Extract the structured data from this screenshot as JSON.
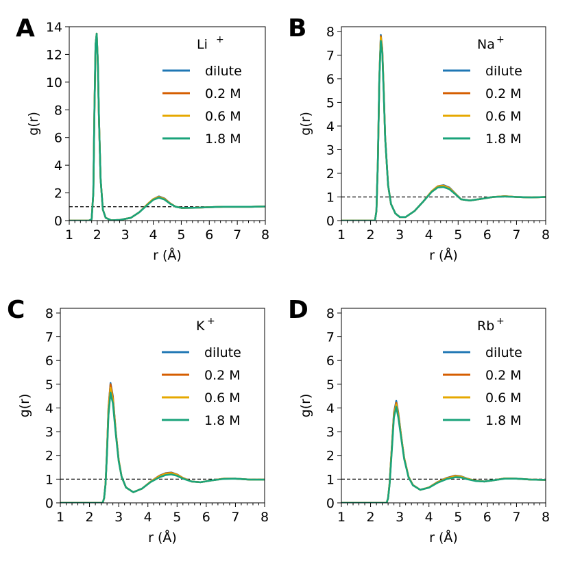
{
  "colors": {
    "dilute": "#1f77b4",
    "0.2 M": "#d55e00",
    "0.6 M": "#e6a800",
    "1.8 M": "#1aa37a",
    "reference": "#000000"
  },
  "chart_data": [
    {
      "panel": "A",
      "type": "line",
      "legend_title": "Li",
      "legend_title_sup": "+",
      "legend_placement": "top-right",
      "xlabel": "r (Å)",
      "ylabel": "g(r)",
      "xlim": [
        1,
        8
      ],
      "ylim": [
        0,
        14
      ],
      "xticks": [
        1,
        2,
        3,
        4,
        5,
        6,
        7,
        8
      ],
      "yticks": [
        0,
        2,
        4,
        6,
        8,
        10,
        12,
        14
      ],
      "reference_line": 1.0,
      "series": [
        {
          "name": "dilute",
          "x": [
            1.0,
            1.7,
            1.8,
            1.86,
            1.9,
            1.94,
            1.98,
            2.02,
            2.06,
            2.12,
            2.2,
            2.3,
            2.5,
            2.8,
            3.2,
            3.5,
            3.8,
            4.0,
            4.2,
            4.4,
            4.6,
            4.8,
            5.0,
            5.5,
            6.0,
            6.5,
            7.0,
            7.5,
            8.0
          ],
          "y": [
            0,
            0,
            0.1,
            2.0,
            8.0,
            12.7,
            13.5,
            11.5,
            7.5,
            3.0,
            0.8,
            0.2,
            0.02,
            0.05,
            0.2,
            0.6,
            1.2,
            1.55,
            1.75,
            1.6,
            1.25,
            1.0,
            0.92,
            0.93,
            0.97,
            1.0,
            1.0,
            1.0,
            1.02
          ]
        },
        {
          "name": "0.2 M",
          "x": [
            1.0,
            1.7,
            1.8,
            1.86,
            1.9,
            1.94,
            1.98,
            2.02,
            2.06,
            2.12,
            2.2,
            2.3,
            2.5,
            2.8,
            3.2,
            3.5,
            3.8,
            4.0,
            4.2,
            4.4,
            4.6,
            4.8,
            5.0,
            5.5,
            6.0,
            6.5,
            7.0,
            7.5,
            8.0
          ],
          "y": [
            0,
            0,
            0.1,
            2.0,
            8.0,
            12.7,
            13.5,
            11.5,
            7.5,
            3.0,
            0.8,
            0.2,
            0.02,
            0.05,
            0.2,
            0.6,
            1.2,
            1.55,
            1.72,
            1.58,
            1.25,
            1.0,
            0.92,
            0.93,
            0.97,
            1.0,
            1.0,
            1.0,
            1.02
          ]
        },
        {
          "name": "0.6 M",
          "x": [
            1.0,
            1.7,
            1.8,
            1.86,
            1.9,
            1.94,
            1.98,
            2.02,
            2.06,
            2.12,
            2.2,
            2.3,
            2.5,
            2.8,
            3.2,
            3.5,
            3.8,
            4.0,
            4.2,
            4.4,
            4.6,
            4.8,
            5.0,
            5.5,
            6.0,
            6.5,
            7.0,
            7.5,
            8.0
          ],
          "y": [
            0,
            0,
            0.1,
            2.0,
            8.0,
            12.7,
            13.5,
            11.5,
            7.5,
            3.0,
            0.8,
            0.2,
            0.02,
            0.05,
            0.2,
            0.6,
            1.2,
            1.55,
            1.7,
            1.56,
            1.24,
            1.0,
            0.92,
            0.93,
            0.97,
            1.0,
            1.0,
            1.0,
            1.02
          ]
        },
        {
          "name": "1.8 M",
          "x": [
            1.0,
            1.7,
            1.8,
            1.86,
            1.9,
            1.94,
            1.98,
            2.02,
            2.06,
            2.12,
            2.2,
            2.3,
            2.5,
            2.8,
            3.2,
            3.5,
            3.8,
            4.0,
            4.2,
            4.4,
            4.6,
            4.8,
            5.0,
            5.5,
            6.0,
            6.5,
            7.0,
            7.5,
            8.0
          ],
          "y": [
            0,
            0,
            0.1,
            2.0,
            8.0,
            12.7,
            13.5,
            11.5,
            7.5,
            3.0,
            0.8,
            0.2,
            0.02,
            0.05,
            0.2,
            0.6,
            1.15,
            1.5,
            1.65,
            1.52,
            1.22,
            1.0,
            0.92,
            0.93,
            0.97,
            1.0,
            1.0,
            1.0,
            1.02
          ]
        }
      ]
    },
    {
      "panel": "B",
      "type": "line",
      "legend_title": "Na",
      "legend_title_sup": "+",
      "legend_placement": "top-right",
      "xlabel": "r (Å)",
      "ylabel": "g(r)",
      "xlim": [
        1,
        8
      ],
      "ylim": [
        0,
        8.2
      ],
      "xticks": [
        1,
        2,
        3,
        4,
        5,
        6,
        7,
        8
      ],
      "yticks": [
        0,
        1,
        2,
        3,
        4,
        5,
        6,
        7,
        8
      ],
      "reference_line": 1.0,
      "series": [
        {
          "name": "dilute",
          "x": [
            1.0,
            2.15,
            2.2,
            2.25,
            2.3,
            2.35,
            2.4,
            2.45,
            2.5,
            2.6,
            2.7,
            2.85,
            3.0,
            3.2,
            3.5,
            3.8,
            4.1,
            4.3,
            4.5,
            4.7,
            4.9,
            5.1,
            5.4,
            5.8,
            6.2,
            6.6,
            7.0,
            7.5,
            8.0
          ],
          "y": [
            0,
            0,
            0.4,
            2.5,
            6.0,
            7.85,
            7.3,
            5.5,
            3.5,
            1.5,
            0.7,
            0.3,
            0.15,
            0.15,
            0.4,
            0.8,
            1.25,
            1.45,
            1.5,
            1.4,
            1.15,
            0.9,
            0.85,
            0.92,
            1.0,
            1.03,
            1.0,
            0.98,
            1.0
          ]
        },
        {
          "name": "0.2 M",
          "x": [
            1.0,
            2.15,
            2.2,
            2.25,
            2.3,
            2.35,
            2.4,
            2.45,
            2.5,
            2.6,
            2.7,
            2.85,
            3.0,
            3.2,
            3.5,
            3.8,
            4.1,
            4.3,
            4.5,
            4.7,
            4.9,
            5.1,
            5.4,
            5.8,
            6.2,
            6.6,
            7.0,
            7.5,
            8.0
          ],
          "y": [
            0,
            0,
            0.4,
            2.5,
            6.0,
            7.8,
            7.25,
            5.5,
            3.5,
            1.5,
            0.7,
            0.3,
            0.15,
            0.15,
            0.4,
            0.8,
            1.25,
            1.45,
            1.48,
            1.38,
            1.14,
            0.9,
            0.85,
            0.92,
            1.0,
            1.03,
            1.0,
            0.98,
            1.0
          ]
        },
        {
          "name": "0.6 M",
          "x": [
            1.0,
            2.15,
            2.2,
            2.25,
            2.3,
            2.35,
            2.4,
            2.45,
            2.5,
            2.6,
            2.7,
            2.85,
            3.0,
            3.2,
            3.5,
            3.8,
            4.1,
            4.3,
            4.5,
            4.7,
            4.9,
            5.1,
            5.4,
            5.8,
            6.2,
            6.6,
            7.0,
            7.5,
            8.0
          ],
          "y": [
            0,
            0,
            0.4,
            2.5,
            6.0,
            7.75,
            7.2,
            5.5,
            3.5,
            1.5,
            0.7,
            0.3,
            0.15,
            0.15,
            0.4,
            0.8,
            1.25,
            1.44,
            1.47,
            1.37,
            1.14,
            0.9,
            0.85,
            0.92,
            1.0,
            1.03,
            1.0,
            0.98,
            1.0
          ]
        },
        {
          "name": "1.8 M",
          "x": [
            1.0,
            2.15,
            2.2,
            2.25,
            2.3,
            2.35,
            2.4,
            2.45,
            2.5,
            2.6,
            2.7,
            2.85,
            3.0,
            3.2,
            3.5,
            3.8,
            4.1,
            4.3,
            4.5,
            4.7,
            4.9,
            5.1,
            5.4,
            5.8,
            6.2,
            6.6,
            7.0,
            7.5,
            8.0
          ],
          "y": [
            0,
            0,
            0.4,
            2.5,
            6.0,
            7.6,
            7.1,
            5.4,
            3.5,
            1.5,
            0.7,
            0.3,
            0.15,
            0.15,
            0.4,
            0.8,
            1.22,
            1.4,
            1.42,
            1.33,
            1.12,
            0.9,
            0.85,
            0.92,
            1.0,
            1.02,
            1.0,
            0.98,
            1.0
          ]
        }
      ]
    },
    {
      "panel": "C",
      "type": "line",
      "legend_title": "K",
      "legend_title_sup": "+",
      "legend_placement": "top-right",
      "xlabel": "r (Å)",
      "ylabel": "g(r)",
      "xlim": [
        1,
        8
      ],
      "ylim": [
        0,
        8.2
      ],
      "xticks": [
        1,
        2,
        3,
        4,
        5,
        6,
        7,
        8
      ],
      "yticks": [
        0,
        1,
        2,
        3,
        4,
        5,
        6,
        7,
        8
      ],
      "reference_line": 1.0,
      "series": [
        {
          "name": "dilute",
          "x": [
            1.0,
            2.45,
            2.5,
            2.55,
            2.6,
            2.65,
            2.72,
            2.8,
            2.9,
            3.0,
            3.1,
            3.25,
            3.5,
            3.8,
            4.1,
            4.4,
            4.6,
            4.8,
            5.0,
            5.2,
            5.5,
            5.8,
            6.2,
            6.6,
            7.0,
            7.5,
            8.0
          ],
          "y": [
            0,
            0,
            0.2,
            0.8,
            2.2,
            4.0,
            5.05,
            4.5,
            3.0,
            1.8,
            1.1,
            0.65,
            0.45,
            0.6,
            0.9,
            1.15,
            1.25,
            1.28,
            1.2,
            1.05,
            0.9,
            0.87,
            0.95,
            1.02,
            1.02,
            0.98,
            0.98
          ]
        },
        {
          "name": "0.2 M",
          "x": [
            1.0,
            2.45,
            2.5,
            2.55,
            2.6,
            2.65,
            2.72,
            2.8,
            2.9,
            3.0,
            3.1,
            3.25,
            3.5,
            3.8,
            4.1,
            4.4,
            4.6,
            4.8,
            5.0,
            5.2,
            5.5,
            5.8,
            6.2,
            6.6,
            7.0,
            7.5,
            8.0
          ],
          "y": [
            0,
            0,
            0.2,
            0.8,
            2.2,
            4.0,
            5.0,
            4.45,
            3.0,
            1.8,
            1.1,
            0.65,
            0.45,
            0.6,
            0.9,
            1.14,
            1.24,
            1.27,
            1.19,
            1.05,
            0.9,
            0.87,
            0.95,
            1.02,
            1.02,
            0.98,
            0.98
          ]
        },
        {
          "name": "0.6 M",
          "x": [
            1.0,
            2.45,
            2.5,
            2.55,
            2.6,
            2.65,
            2.72,
            2.8,
            2.9,
            3.0,
            3.1,
            3.25,
            3.5,
            3.8,
            4.1,
            4.4,
            4.6,
            4.8,
            5.0,
            5.2,
            5.5,
            5.8,
            6.2,
            6.6,
            7.0,
            7.5,
            8.0
          ],
          "y": [
            0,
            0,
            0.2,
            0.8,
            2.2,
            3.9,
            4.85,
            4.35,
            2.95,
            1.8,
            1.1,
            0.65,
            0.45,
            0.6,
            0.9,
            1.12,
            1.22,
            1.25,
            1.18,
            1.04,
            0.9,
            0.87,
            0.95,
            1.02,
            1.02,
            0.98,
            0.98
          ]
        },
        {
          "name": "1.8 M",
          "x": [
            1.0,
            2.45,
            2.5,
            2.55,
            2.6,
            2.65,
            2.72,
            2.8,
            2.9,
            3.0,
            3.1,
            3.25,
            3.5,
            3.8,
            4.1,
            4.4,
            4.6,
            4.8,
            5.0,
            5.2,
            5.5,
            5.8,
            6.2,
            6.6,
            7.0,
            7.5,
            8.0
          ],
          "y": [
            0,
            0,
            0.2,
            0.8,
            2.1,
            3.7,
            4.65,
            4.2,
            2.9,
            1.75,
            1.1,
            0.65,
            0.45,
            0.6,
            0.88,
            1.08,
            1.17,
            1.2,
            1.14,
            1.02,
            0.9,
            0.87,
            0.95,
            1.01,
            1.02,
            0.98,
            0.98
          ]
        }
      ]
    },
    {
      "panel": "D",
      "type": "line",
      "legend_title": "Rb",
      "legend_title_sup": "+",
      "legend_placement": "top-right",
      "xlabel": "r (Å)",
      "ylabel": "g(r)",
      "xlim": [
        1,
        8
      ],
      "ylim": [
        0,
        8.2
      ],
      "xticks": [
        1,
        2,
        3,
        4,
        5,
        6,
        7,
        8
      ],
      "yticks": [
        0,
        1,
        2,
        3,
        4,
        5,
        6,
        7,
        8
      ],
      "reference_line": 1.0,
      "series": [
        {
          "name": "dilute",
          "x": [
            1.0,
            2.55,
            2.6,
            2.65,
            2.72,
            2.8,
            2.88,
            2.95,
            3.05,
            3.15,
            3.3,
            3.45,
            3.7,
            4.0,
            4.3,
            4.6,
            4.9,
            5.1,
            5.3,
            5.6,
            5.9,
            6.2,
            6.6,
            7.0,
            7.5,
            8.0
          ],
          "y": [
            0,
            0,
            0.2,
            0.8,
            2.2,
            3.8,
            4.3,
            3.8,
            2.8,
            1.9,
            1.1,
            0.75,
            0.55,
            0.65,
            0.88,
            1.05,
            1.15,
            1.12,
            1.03,
            0.93,
            0.9,
            0.95,
            1.03,
            1.02,
            0.98,
            0.97
          ]
        },
        {
          "name": "0.2 M",
          "x": [
            1.0,
            2.55,
            2.6,
            2.65,
            2.72,
            2.8,
            2.88,
            2.95,
            3.05,
            3.15,
            3.3,
            3.45,
            3.7,
            4.0,
            4.3,
            4.6,
            4.9,
            5.1,
            5.3,
            5.6,
            5.9,
            6.2,
            6.6,
            7.0,
            7.5,
            8.0
          ],
          "y": [
            0,
            0,
            0.2,
            0.8,
            2.2,
            3.75,
            4.22,
            3.75,
            2.8,
            1.9,
            1.1,
            0.75,
            0.55,
            0.65,
            0.88,
            1.04,
            1.14,
            1.11,
            1.02,
            0.93,
            0.9,
            0.95,
            1.03,
            1.02,
            0.98,
            0.97
          ]
        },
        {
          "name": "0.6 M",
          "x": [
            1.0,
            2.55,
            2.6,
            2.65,
            2.72,
            2.8,
            2.88,
            2.95,
            3.05,
            3.15,
            3.3,
            3.45,
            3.7,
            4.0,
            4.3,
            4.6,
            4.9,
            5.1,
            5.3,
            5.6,
            5.9,
            6.2,
            6.6,
            7.0,
            7.5,
            8.0
          ],
          "y": [
            0,
            0,
            0.2,
            0.8,
            2.15,
            3.7,
            4.15,
            3.7,
            2.78,
            1.9,
            1.1,
            0.75,
            0.55,
            0.65,
            0.87,
            1.03,
            1.12,
            1.1,
            1.02,
            0.93,
            0.9,
            0.95,
            1.03,
            1.02,
            0.98,
            0.97
          ]
        },
        {
          "name": "1.8 M",
          "x": [
            1.0,
            2.55,
            2.6,
            2.65,
            2.72,
            2.8,
            2.88,
            2.95,
            3.05,
            3.15,
            3.3,
            3.45,
            3.7,
            4.0,
            4.3,
            4.6,
            4.9,
            5.1,
            5.3,
            5.6,
            5.9,
            6.2,
            6.6,
            7.0,
            7.5,
            8.0
          ],
          "y": [
            0,
            0,
            0.2,
            0.75,
            2.05,
            3.6,
            4.05,
            3.6,
            2.72,
            1.85,
            1.08,
            0.74,
            0.55,
            0.64,
            0.85,
            1.0,
            1.08,
            1.07,
            1.0,
            0.92,
            0.9,
            0.95,
            1.02,
            1.02,
            0.98,
            0.97
          ]
        }
      ]
    }
  ]
}
